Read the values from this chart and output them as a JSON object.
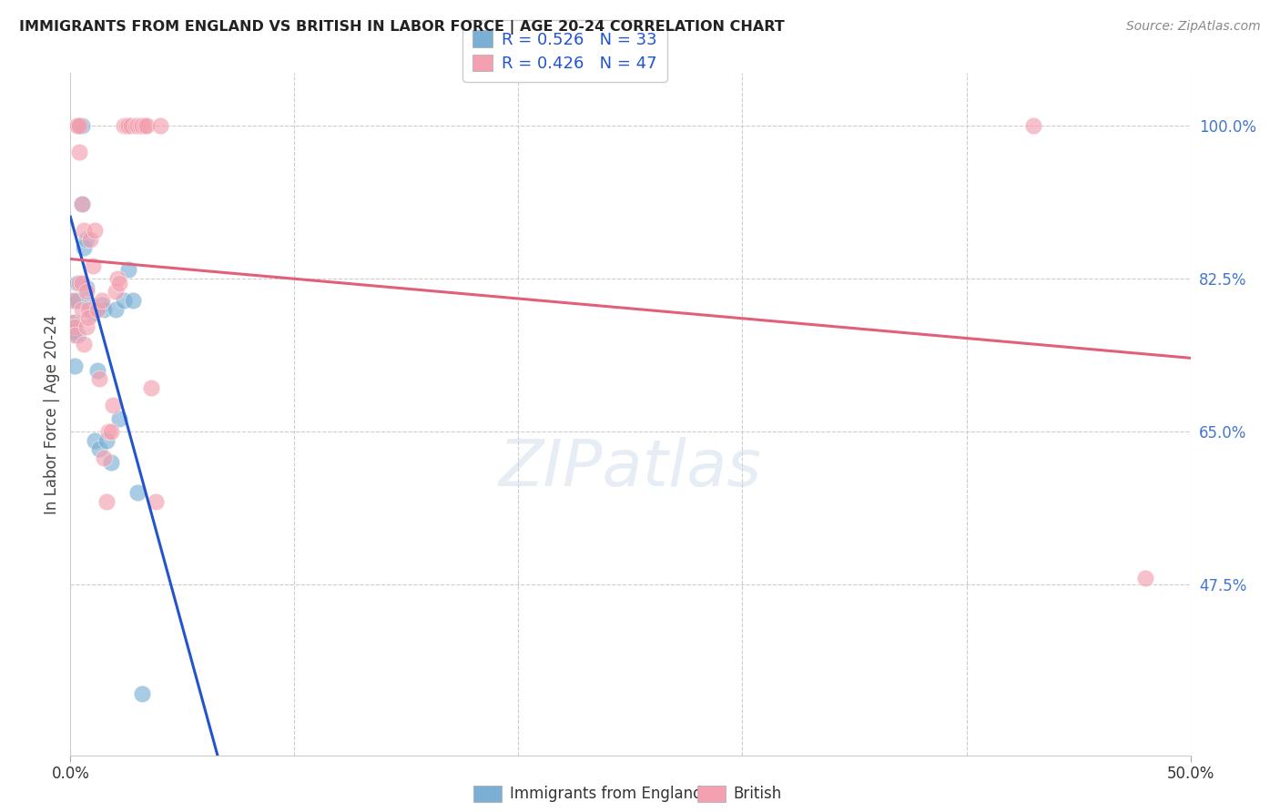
{
  "title": "IMMIGRANTS FROM ENGLAND VS BRITISH IN LABOR FORCE | AGE 20-24 CORRELATION CHART",
  "source": "Source: ZipAtlas.com",
  "ylabel": "In Labor Force | Age 20-24",
  "ytick_labels": [
    "100.0%",
    "82.5%",
    "65.0%",
    "47.5%"
  ],
  "ytick_values": [
    1.0,
    0.825,
    0.65,
    0.475
  ],
  "xlim": [
    0.0,
    0.5
  ],
  "ylim": [
    0.28,
    1.06
  ],
  "blue_R": 0.526,
  "blue_N": 33,
  "pink_R": 0.426,
  "pink_N": 47,
  "blue_color": "#7bafd4",
  "pink_color": "#f4a0b0",
  "blue_line_color": "#2255cc",
  "pink_line_color": "#e0607a",
  "legend_label_blue": "Immigrants from England",
  "legend_label_pink": "British",
  "blue_x": [
    0.001,
    0.002,
    0.002,
    0.002,
    0.003,
    0.003,
    0.003,
    0.003,
    0.004,
    0.004,
    0.004,
    0.004,
    0.005,
    0.005,
    0.006,
    0.007,
    0.007,
    0.009,
    0.01,
    0.011,
    0.012,
    0.013,
    0.014,
    0.015,
    0.016,
    0.018,
    0.02,
    0.022,
    0.024,
    0.026,
    0.028,
    0.03,
    0.032
  ],
  "blue_y": [
    0.765,
    0.8,
    0.775,
    0.725,
    0.82,
    0.8,
    0.76,
    1.0,
    1.0,
    1.0,
    1.0,
    1.0,
    0.91,
    1.0,
    0.86,
    0.87,
    0.815,
    0.795,
    0.785,
    0.64,
    0.72,
    0.63,
    0.795,
    0.79,
    0.64,
    0.615,
    0.79,
    0.665,
    0.8,
    0.835,
    0.8,
    0.58,
    0.35
  ],
  "pink_x": [
    0.001,
    0.001,
    0.002,
    0.002,
    0.003,
    0.003,
    0.004,
    0.004,
    0.004,
    0.005,
    0.005,
    0.005,
    0.006,
    0.006,
    0.007,
    0.007,
    0.008,
    0.008,
    0.009,
    0.01,
    0.011,
    0.012,
    0.013,
    0.014,
    0.015,
    0.016,
    0.017,
    0.018,
    0.019,
    0.02,
    0.021,
    0.022,
    0.024,
    0.025,
    0.026,
    0.027,
    0.029,
    0.03,
    0.031,
    0.032,
    0.033,
    0.034,
    0.036,
    0.038,
    0.04,
    0.43,
    0.48
  ],
  "pink_y": [
    0.8,
    0.775,
    0.77,
    0.76,
    1.0,
    1.0,
    1.0,
    0.97,
    0.82,
    0.82,
    0.91,
    0.79,
    0.88,
    0.75,
    0.81,
    0.77,
    0.79,
    0.78,
    0.87,
    0.84,
    0.88,
    0.79,
    0.71,
    0.8,
    0.62,
    0.57,
    0.65,
    0.65,
    0.68,
    0.81,
    0.825,
    0.82,
    1.0,
    1.0,
    1.0,
    1.0,
    1.0,
    1.0,
    1.0,
    1.0,
    1.0,
    1.0,
    0.7,
    0.57,
    1.0,
    1.0,
    0.483
  ],
  "grid_color": "#cccccc",
  "background_color": "#ffffff",
  "xtick_minor": [
    0.0,
    0.1,
    0.2,
    0.3,
    0.4,
    0.5
  ]
}
